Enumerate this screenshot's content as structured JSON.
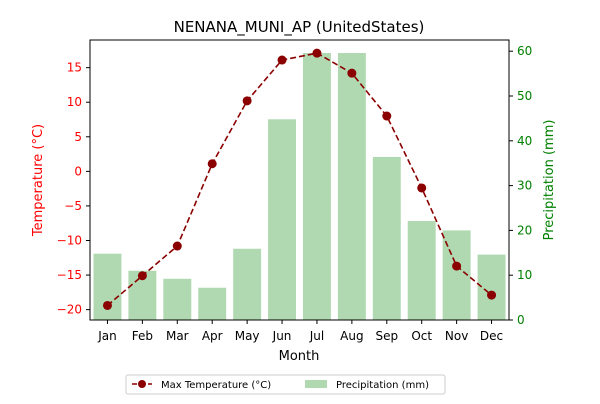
{
  "chart_data": {
    "type": "bar",
    "title": "NENANA_MUNI_AP (UnitedStates)",
    "xlabel": "Month",
    "ylabel_left": "Temperature (°C)",
    "ylabel_right": "Precipitation (mm)",
    "categories": [
      "Jan",
      "Feb",
      "Mar",
      "Apr",
      "May",
      "Jun",
      "Jul",
      "Aug",
      "Sep",
      "Oct",
      "Nov",
      "Dec"
    ],
    "ylim_left": [
      -21.5,
      19.0
    ],
    "ylim_right": [
      0,
      62.5
    ],
    "yticks_left": [
      -20,
      -15,
      -10,
      -5,
      0,
      5,
      10,
      15
    ],
    "yticks_right": [
      0,
      10,
      20,
      30,
      40,
      50,
      60
    ],
    "series": [
      {
        "name": "Max Temperature (°C)",
        "type": "line",
        "axis": "left",
        "color": "#8b0000",
        "values": [
          -19.4,
          -15.1,
          -10.8,
          1.1,
          10.2,
          16.1,
          17.1,
          14.2,
          8.0,
          -2.4,
          -13.7,
          -17.9
        ]
      },
      {
        "name": "Precipitation (mm)",
        "type": "bar",
        "axis": "right",
        "color": "#b0d9b1",
        "values": [
          14.8,
          11.0,
          9.2,
          7.2,
          15.9,
          44.8,
          59.6,
          59.6,
          36.4,
          22.1,
          20.0,
          14.6
        ]
      }
    ],
    "colors": {
      "left_axis": "#ff0000",
      "right_axis": "#008000"
    },
    "grid": false,
    "legend_position": "bottom-center"
  }
}
